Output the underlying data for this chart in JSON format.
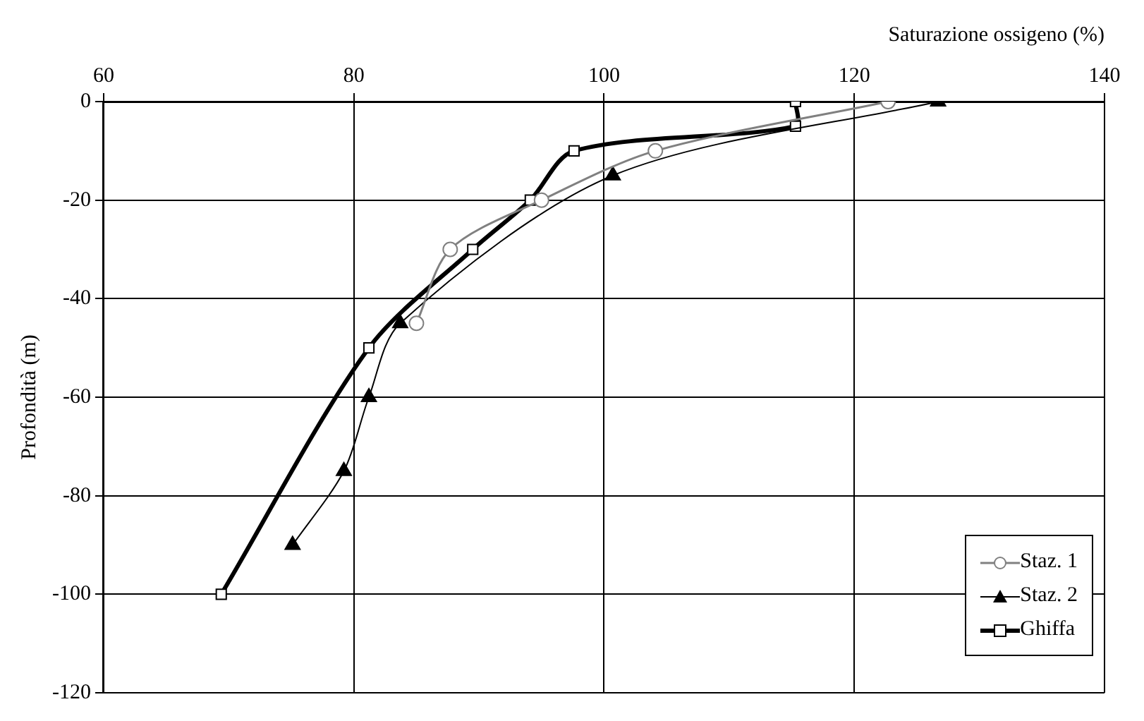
{
  "chart_data": {
    "type": "line",
    "xlabel": "Saturazione ossigeno (%)",
    "ylabel": "Profondità (m)",
    "xlim": [
      60,
      140
    ],
    "xticks": [
      60,
      80,
      100,
      120,
      140
    ],
    "ylim": [
      -120,
      0
    ],
    "yticks": [
      -120,
      -100,
      -80,
      -60,
      -40,
      -20,
      0
    ],
    "grid": true,
    "legend": "bottom right",
    "series": [
      {
        "name": "Staz. 1",
        "color": "#808080",
        "marker": "circle",
        "x": [
          122.7,
          104.1,
          95.0,
          87.7,
          85.0
        ],
        "values": [
          0,
          -10,
          -20,
          -30,
          -45
        ]
      },
      {
        "name": "Staz. 2",
        "color": "#000000",
        "marker": "triangle",
        "x": [
          126.7,
          100.7,
          83.7,
          81.2,
          79.2,
          75.1
        ],
        "values": [
          0,
          -15,
          -45,
          -60,
          -75,
          -90
        ]
      },
      {
        "name": "Ghiffa",
        "color": "#000000",
        "marker": "square",
        "x": [
          115.3,
          115.3,
          97.6,
          94.1,
          89.5,
          81.2,
          69.4
        ],
        "values": [
          0,
          -5,
          -10,
          -20,
          -30,
          -50,
          -100
        ]
      }
    ]
  }
}
